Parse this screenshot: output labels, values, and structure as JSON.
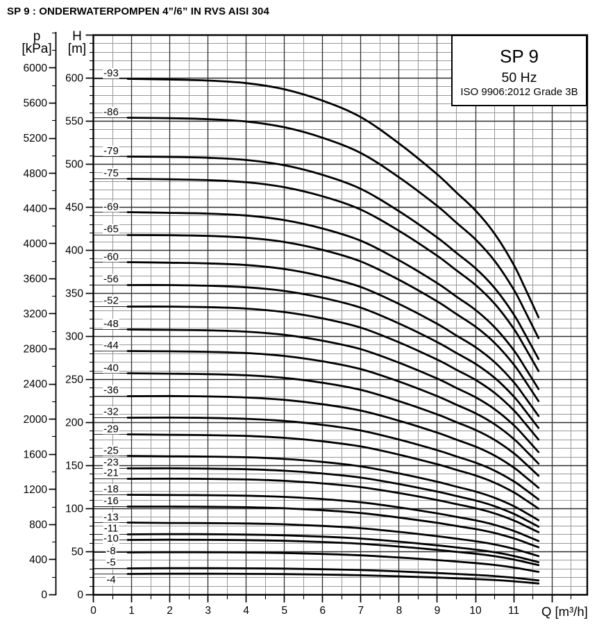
{
  "page_title": "SP 9 : ONDERWATERPOMPEN 4”/6” IN RVS AISI 304",
  "legend": {
    "model": "SP 9",
    "frequency": "50 Hz",
    "standard": "ISO 9906:2012 Grade 3B"
  },
  "axes": {
    "pressure": {
      "symbol": "p",
      "unit": "[kPa]",
      "tick_labels": [
        0,
        400,
        800,
        1200,
        1600,
        2000,
        2400,
        2800,
        3200,
        3600,
        4000,
        4400,
        4800,
        5200,
        5600,
        6000
      ]
    },
    "head": {
      "symbol": "H",
      "unit": "[m]",
      "tick_labels": [
        0,
        50,
        100,
        150,
        200,
        250,
        300,
        350,
        400,
        450,
        500,
        550,
        600
      ]
    },
    "flow": {
      "symbol": "Q",
      "unit": "[m³/h]",
      "label": "Q [m³/h]",
      "tick_labels": [
        0,
        1,
        2,
        3,
        4,
        5,
        6,
        7,
        8,
        9,
        10,
        11
      ]
    }
  },
  "chart_data": {
    "type": "line",
    "title": "SP 9 50 Hz submersible pump performance curves: head vs flow",
    "xlabel": "Q [m³/h]",
    "ylabel_left": "p [kPa]",
    "ylabel_right": "H [m]",
    "xlim": [
      0,
      12.9
    ],
    "ylim_head_m": [
      0,
      650
    ],
    "ylim_pressure_kpa": [
      0,
      6375
    ],
    "kpa_per_m": 9.807,
    "grid": {
      "x_major_step": 1,
      "x_minor_step": 0.5,
      "y_major_step_m": 50,
      "y_minor_step_m": 10
    },
    "curve_flow_start": 0.9,
    "curve_flow_end": 11.65,
    "shape": {
      "q": [
        0.9,
        2,
        3,
        4,
        5,
        6,
        7,
        8,
        9,
        9.5,
        10,
        10.5,
        11,
        11.3,
        11.65
      ],
      "rel_head": [
        1.0,
        0.999,
        0.997,
        0.992,
        0.98,
        0.958,
        0.926,
        0.875,
        0.815,
        0.78,
        0.745,
        0.7,
        0.64,
        0.594,
        0.538
      ]
    },
    "series": [
      {
        "label": "-93",
        "stages": 93,
        "shutoff_head_m": 599
      },
      {
        "label": "-86",
        "stages": 86,
        "shutoff_head_m": 554
      },
      {
        "label": "-79",
        "stages": 79,
        "shutoff_head_m": 509
      },
      {
        "label": "-75",
        "stages": 75,
        "shutoff_head_m": 483
      },
      {
        "label": "-69",
        "stages": 69,
        "shutoff_head_m": 444
      },
      {
        "label": "-65",
        "stages": 65,
        "shutoff_head_m": 418
      },
      {
        "label": "-60",
        "stages": 60,
        "shutoff_head_m": 386
      },
      {
        "label": "-56",
        "stages": 56,
        "shutoff_head_m": 360
      },
      {
        "label": "-52",
        "stages": 52,
        "shutoff_head_m": 335
      },
      {
        "label": "-48",
        "stages": 48,
        "shutoff_head_m": 308
      },
      {
        "label": "-44",
        "stages": 44,
        "shutoff_head_m": 283
      },
      {
        "label": "-40",
        "stages": 40,
        "shutoff_head_m": 257
      },
      {
        "label": "-36",
        "stages": 36,
        "shutoff_head_m": 231
      },
      {
        "label": "-32",
        "stages": 32,
        "shutoff_head_m": 206
      },
      {
        "label": "-29",
        "stages": 29,
        "shutoff_head_m": 186
      },
      {
        "label": "-25",
        "stages": 25,
        "shutoff_head_m": 161
      },
      {
        "label": "-23",
        "stages": 23,
        "shutoff_head_m": 147
      },
      {
        "label": "-21",
        "stages": 21,
        "shutoff_head_m": 135
      },
      {
        "label": "-18",
        "stages": 18,
        "shutoff_head_m": 116
      },
      {
        "label": "-16",
        "stages": 16,
        "shutoff_head_m": 102.5
      },
      {
        "label": "-13",
        "stages": 13,
        "shutoff_head_m": 83.5
      },
      {
        "label": "-11",
        "stages": 11,
        "shutoff_head_m": 70.5
      },
      {
        "label": "-10",
        "stages": 10,
        "shutoff_head_m": 64,
        "label_dy": 6.5
      },
      {
        "label": "-8",
        "stages": 8,
        "shutoff_head_m": 49.5,
        "label_dy": 6.5
      },
      {
        "label": "-5",
        "stages": 5,
        "shutoff_head_m": 31
      },
      {
        "label": "-4",
        "stages": 4,
        "shutoff_head_m": 24.5,
        "label_below": true
      }
    ]
  }
}
